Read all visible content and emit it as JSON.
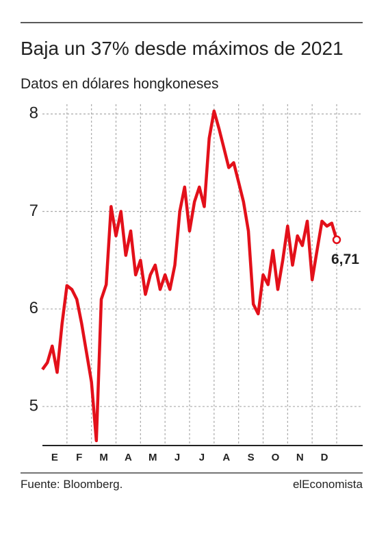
{
  "chart_data": {
    "type": "line",
    "title": "Baja un 37% desde máximos de 2021",
    "subtitle": "Datos en dólares hongkoneses",
    "source": "Fuente: Bloomberg.",
    "brand": "elEconomista",
    "categories": [
      null,
      null,
      "E",
      null,
      null,
      null,
      null,
      "F",
      null,
      null,
      null,
      null,
      "M",
      null,
      null,
      null,
      null,
      "A",
      null,
      null,
      null,
      null,
      "M",
      null,
      null,
      null,
      null,
      "J",
      null,
      null,
      null,
      null,
      "J",
      null,
      null,
      null,
      null,
      "A",
      null,
      null,
      null,
      null,
      "S",
      null,
      null,
      null,
      null,
      "O",
      null,
      null,
      null,
      null,
      "N",
      null,
      null,
      null,
      null,
      "D",
      null,
      null,
      null
    ],
    "series": [
      {
        "color": "#e3101a",
        "values": [
          5.38,
          5.45,
          5.62,
          5.35,
          5.85,
          6.24,
          6.2,
          6.1,
          5.85,
          5.55,
          5.25,
          4.65,
          6.1,
          6.25,
          7.05,
          6.75,
          7.0,
          6.55,
          6.8,
          6.35,
          6.5,
          6.15,
          6.35,
          6.45,
          6.2,
          6.35,
          6.2,
          6.45,
          7.0,
          7.25,
          6.8,
          7.1,
          7.25,
          7.05,
          7.75,
          8.03,
          7.85,
          7.65,
          7.45,
          7.5,
          7.3,
          7.1,
          6.8,
          6.05,
          5.95,
          6.35,
          6.25,
          6.6,
          6.2,
          6.5,
          6.85,
          6.45,
          6.75,
          6.65,
          6.9,
          6.3,
          6.6,
          6.9,
          6.85,
          6.88,
          6.71
        ],
        "value_labels": [
          null,
          null,
          null,
          null,
          null,
          null,
          null,
          null,
          null,
          null,
          null,
          null,
          null,
          null,
          null,
          null,
          null,
          null,
          null,
          null,
          null,
          null,
          null,
          null,
          null,
          null,
          null,
          null,
          null,
          null,
          null,
          null,
          null,
          null,
          null,
          null,
          null,
          null,
          null,
          null,
          null,
          null,
          null,
          null,
          null,
          null,
          null,
          null,
          null,
          null,
          null,
          null,
          null,
          null,
          null,
          null,
          null,
          null,
          null,
          null,
          "6,71"
        ]
      }
    ],
    "ylim": [
      4.6,
      8.1
    ],
    "yticks": [
      5,
      6,
      7,
      8
    ],
    "grid": true
  }
}
